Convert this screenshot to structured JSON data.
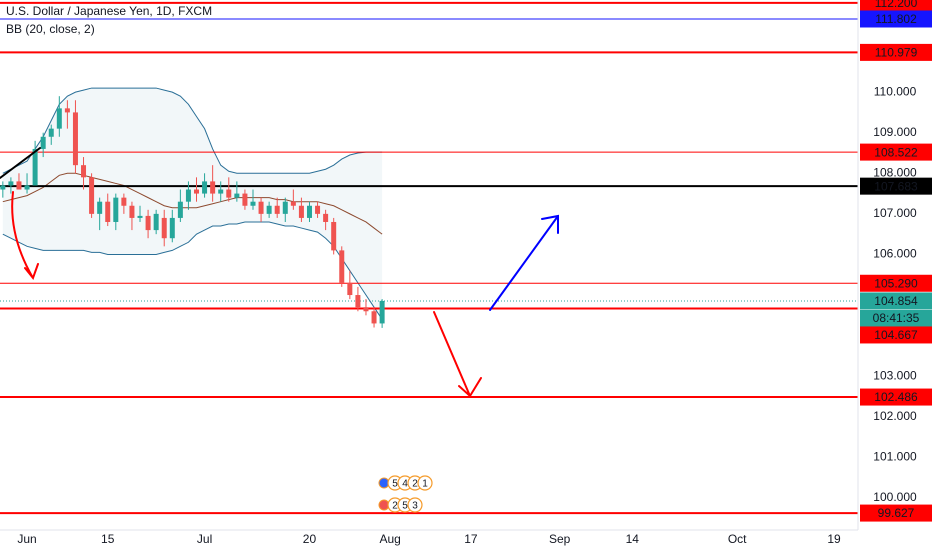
{
  "chart_data": {
    "type": "candlestick",
    "title": "U.S. Dollar / Japanese Yen, 1D, FXCM",
    "subtitle": "BB (20, close, 2)",
    "x": [
      -3,
      -2,
      -1,
      0,
      1,
      2,
      3,
      4,
      5,
      6,
      7,
      8,
      9,
      10,
      11,
      12,
      13,
      14,
      15,
      16,
      17,
      18,
      19,
      20,
      21,
      22,
      23,
      24,
      25,
      26,
      27,
      28,
      29,
      30,
      31,
      32,
      33,
      34,
      35,
      36,
      37,
      38,
      39,
      40,
      41,
      42,
      43,
      44
    ],
    "open": [
      107.6,
      107.7,
      107.8,
      107.6,
      107.7,
      108.6,
      108.9,
      109.1,
      109.6,
      109.5,
      108.2,
      107.9,
      107.0,
      107.3,
      106.8,
      107.4,
      107.2,
      106.9,
      106.95,
      106.6,
      106.9,
      106.4,
      106.9,
      107.3,
      107.6,
      107.5,
      107.8,
      107.5,
      107.6,
      107.4,
      107.5,
      107.2,
      107.3,
      107.0,
      107.2,
      107.0,
      107.3,
      107.2,
      106.9,
      107.2,
      107.0,
      106.8,
      106.1,
      105.3,
      105.0,
      104.7,
      104.6,
      104.3
    ],
    "high": [
      107.8,
      107.9,
      108.0,
      108.0,
      108.8,
      109.0,
      109.2,
      109.9,
      109.8,
      109.8,
      108.4,
      108.0,
      107.4,
      107.5,
      107.5,
      107.5,
      107.3,
      107.2,
      107.1,
      107.1,
      107.1,
      107.1,
      107.6,
      107.8,
      107.9,
      108.0,
      108.2,
      107.8,
      107.9,
      107.8,
      107.6,
      107.6,
      107.4,
      107.3,
      107.4,
      107.4,
      107.6,
      107.4,
      107.3,
      107.3,
      107.1,
      106.9,
      106.2,
      105.6,
      105.2,
      104.9,
      104.7,
      104.9
    ],
    "low": [
      107.4,
      107.5,
      107.6,
      107.5,
      107.7,
      108.4,
      108.7,
      108.9,
      109.1,
      108.0,
      107.6,
      106.9,
      106.6,
      106.7,
      106.6,
      107.0,
      106.6,
      106.8,
      106.4,
      106.5,
      106.2,
      106.3,
      106.8,
      107.1,
      107.3,
      107.4,
      107.3,
      107.3,
      107.3,
      107.3,
      107.1,
      107.1,
      106.8,
      106.9,
      106.9,
      106.8,
      107.1,
      106.8,
      106.8,
      106.9,
      106.6,
      106.0,
      105.2,
      104.9,
      104.6,
      104.5,
      104.2,
      104.19
    ],
    "close": [
      107.7,
      107.8,
      107.6,
      107.7,
      108.6,
      108.9,
      109.1,
      109.6,
      109.5,
      108.2,
      107.9,
      107.0,
      107.3,
      106.8,
      107.4,
      107.2,
      106.9,
      106.95,
      106.6,
      107.0,
      106.4,
      106.9,
      107.3,
      107.6,
      107.5,
      107.8,
      107.5,
      107.6,
      107.4,
      107.5,
      107.2,
      107.3,
      107.0,
      107.2,
      107.0,
      107.3,
      107.2,
      106.9,
      107.2,
      107.0,
      106.8,
      106.1,
      105.3,
      105.0,
      104.7,
      104.6,
      104.3,
      104.854
    ],
    "up_color": "#26a69a",
    "down_color": "#ef5350",
    "bollinger": {
      "upper": [
        108.0,
        108.1,
        108.2,
        108.3,
        108.6,
        108.9,
        109.3,
        109.7,
        109.9,
        110.0,
        110.05,
        110.1,
        110.1,
        110.1,
        110.1,
        110.1,
        110.1,
        110.1,
        110.1,
        110.1,
        110.05,
        110.0,
        109.9,
        109.7,
        109.4,
        109.1,
        108.6,
        108.2,
        108.05,
        108.0,
        108.0,
        108.0,
        108.0,
        108.0,
        108.0,
        108.0,
        108.0,
        108.0,
        108.0,
        108.05,
        108.1,
        108.2,
        108.35,
        108.45,
        108.5,
        108.52,
        108.52,
        108.52
      ],
      "basis": [
        107.3,
        107.35,
        107.4,
        107.45,
        107.55,
        107.65,
        107.8,
        107.95,
        108.0,
        108.0,
        107.95,
        107.9,
        107.85,
        107.8,
        107.75,
        107.7,
        107.6,
        107.5,
        107.4,
        107.3,
        107.2,
        107.15,
        107.15,
        107.15,
        107.15,
        107.2,
        107.25,
        107.3,
        107.35,
        107.4,
        107.4,
        107.4,
        107.4,
        107.4,
        107.35,
        107.35,
        107.3,
        107.3,
        107.3,
        107.3,
        107.25,
        107.2,
        107.1,
        107.0,
        106.9,
        106.8,
        106.65,
        106.5
      ],
      "lower": [
        106.5,
        106.4,
        106.3,
        106.2,
        106.15,
        106.1,
        106.1,
        106.1,
        106.1,
        106.1,
        106.1,
        106.05,
        106.05,
        106.0,
        106.0,
        106.0,
        106.0,
        106.0,
        106.0,
        106.0,
        106.05,
        106.1,
        106.2,
        106.3,
        106.5,
        106.6,
        106.7,
        106.7,
        106.75,
        106.75,
        106.8,
        106.8,
        106.8,
        106.8,
        106.75,
        106.7,
        106.7,
        106.65,
        106.6,
        106.55,
        106.4,
        106.2,
        105.9,
        105.6,
        105.3,
        105.0,
        104.7,
        104.4
      ],
      "band_color": "#2a6f97",
      "basis_color": "#8d4a2f"
    },
    "xlim": [
      -3.35,
      102.97
    ],
    "xticks": [
      {
        "value": 0,
        "label": "Jun"
      },
      {
        "value": 10,
        "label": "15"
      },
      {
        "value": 22,
        "label": "Jul"
      },
      {
        "value": 35,
        "label": "20"
      },
      {
        "value": 45,
        "label": "Aug"
      },
      {
        "value": 55,
        "label": "17"
      },
      {
        "value": 66,
        "label": "Sep"
      },
      {
        "value": 75,
        "label": "14"
      },
      {
        "value": 88,
        "label": "Oct"
      },
      {
        "value": 100,
        "label": "19"
      }
    ],
    "ylim": [
      99.21,
      112.27
    ],
    "yticks": [
      {
        "value": 100,
        "label": "100.000"
      },
      {
        "value": 101,
        "label": "101.000"
      },
      {
        "value": 102,
        "label": "102.000"
      },
      {
        "value": 103,
        "label": "103.000"
      },
      {
        "value": 106,
        "label": "106.000"
      },
      {
        "value": 107,
        "label": "107.000"
      },
      {
        "value": 108,
        "label": "108.000"
      },
      {
        "value": 109,
        "label": "109.000"
      },
      {
        "value": 110,
        "label": "110.000"
      }
    ],
    "levels": [
      {
        "value": 112.2,
        "label": "112.200",
        "color": "#ff0000",
        "width": 2
      },
      {
        "value": 111.802,
        "color": "#1515ff",
        "width": 1
      },
      {
        "value": 110.979,
        "color": "#ff0000",
        "width": 2
      },
      {
        "value": 108.522,
        "color": "#ff0000",
        "width": 1
      },
      {
        "value": 107.683,
        "color": "#000000",
        "width": 2
      },
      {
        "value": 105.29,
        "label": "105.290",
        "color": "#ff0000",
        "width": 1
      },
      {
        "value": 104.667,
        "color": "#ff0000",
        "width": 2
      },
      {
        "value": 102.486,
        "color": "#ff0000",
        "width": 2
      },
      {
        "value": 99.627,
        "color": "#ff0000",
        "width": 2
      }
    ],
    "last_price": {
      "value": 104.854,
      "countdown": "08:41:35",
      "color": "#26a69a"
    },
    "events": [
      [
        "5",
        "4",
        "2",
        "1"
      ],
      [
        "2",
        "5",
        "3"
      ]
    ]
  }
}
